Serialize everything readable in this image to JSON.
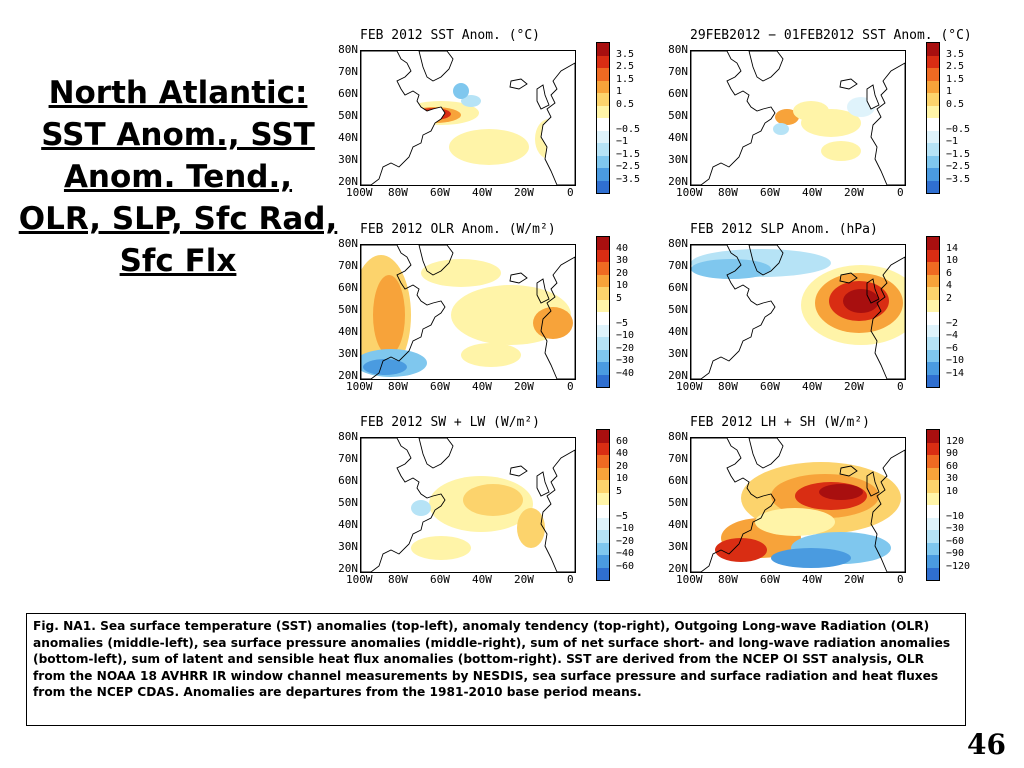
{
  "slide_title": "North Atlantic: SST Anom., SST Anom. Tend., OLR, SLP, Sfc Rad, Sfc Flx",
  "page_number": "46",
  "caption": "Fig. NA1. Sea surface temperature (SST) anomalies (top-left), anomaly tendency (top-right), Outgoing Long-wave Radiation (OLR) anomalies (middle-left), sea surface pressure anomalies (middle-right), sum of net surface short- and long-wave radiation anomalies (bottom-left), sum of latent and sensible heat flux anomalies (bottom-right). SST are derived from the NCEP OI SST analysis, OLR from the NOAA 18 AVHRR IR window channel measurements by NESDIS, sea surface pressure and surface radiation and heat fluxes from the NCEP CDAS. Anomalies are departures from the 1981-2010 base period means.",
  "lat_labels": [
    "80N",
    "70N",
    "60N",
    "50N",
    "40N",
    "30N",
    "20N"
  ],
  "lon_labels": [
    "100W",
    "80W",
    "60W",
    "40W",
    "20W",
    "0"
  ],
  "colors": {
    "warm": [
      "#fff4a8",
      "#fcd36c",
      "#f7a33a",
      "#ef6a22",
      "#d92d13",
      "#a80f0f"
    ],
    "cool": [
      "#dff3fb",
      "#b6e3f6",
      "#7fc7ee",
      "#4a9be0",
      "#2f6fd0"
    ],
    "land": "#ffffff",
    "coast": "#000000"
  },
  "panels": [
    {
      "title": "FEB 2012 SST Anom. (°C)",
      "levels": [
        "3.5",
        "2.5",
        "1.5",
        "1",
        "0.5",
        "−0.5",
        "−1",
        "−1.5",
        "−2.5",
        "−3.5"
      ]
    },
    {
      "title": "29FEB2012 − 01FEB2012 SST Anom. (°C)",
      "levels": [
        "3.5",
        "2.5",
        "1.5",
        "1",
        "0.5",
        "−0.5",
        "−1",
        "−1.5",
        "−2.5",
        "−3.5"
      ]
    },
    {
      "title": "FEB 2012 OLR Anom. (W/m²)",
      "levels": [
        "40",
        "30",
        "20",
        "10",
        "5",
        "−5",
        "−10",
        "−20",
        "−30",
        "−40"
      ]
    },
    {
      "title": "FEB 2012 SLP Anom. (hPa)",
      "levels": [
        "14",
        "10",
        "6",
        "4",
        "2",
        "−2",
        "−4",
        "−6",
        "−10",
        "−14"
      ]
    },
    {
      "title": "FEB 2012 SW + LW (W/m²)",
      "levels": [
        "60",
        "40",
        "20",
        "10",
        "5",
        "−5",
        "−10",
        "−20",
        "−40",
        "−60"
      ]
    },
    {
      "title": "FEB 2012 LH + SH (W/m²)",
      "levels": [
        "120",
        "90",
        "60",
        "30",
        "10",
        "−10",
        "−30",
        "−60",
        "−90",
        "−120"
      ]
    }
  ]
}
